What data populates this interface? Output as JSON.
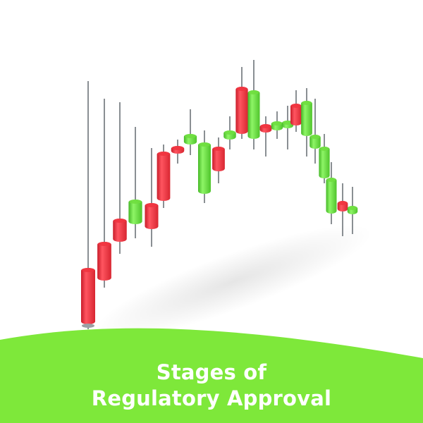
{
  "banner": {
    "line1": "Stages of",
    "line2": "Regulatory Approval",
    "color": "#7ee83a"
  },
  "candle_colors": {
    "red": "#f0343f",
    "green": "#6fde3f",
    "wick": "#8a8f93"
  },
  "candles": [
    {
      "color": "red"
    },
    {
      "color": "red"
    },
    {
      "color": "red"
    },
    {
      "color": "green"
    },
    {
      "color": "red"
    },
    {
      "color": "red"
    },
    {
      "color": "red"
    },
    {
      "color": "green"
    },
    {
      "color": "green"
    },
    {
      "color": "red"
    },
    {
      "color": "green"
    },
    {
      "color": "red"
    },
    {
      "color": "green"
    },
    {
      "color": "red"
    },
    {
      "color": "green"
    },
    {
      "color": "green"
    },
    {
      "color": "red"
    },
    {
      "color": "green"
    },
    {
      "color": "green"
    },
    {
      "color": "green"
    },
    {
      "color": "green"
    },
    {
      "color": "red"
    },
    {
      "color": "green"
    }
  ]
}
